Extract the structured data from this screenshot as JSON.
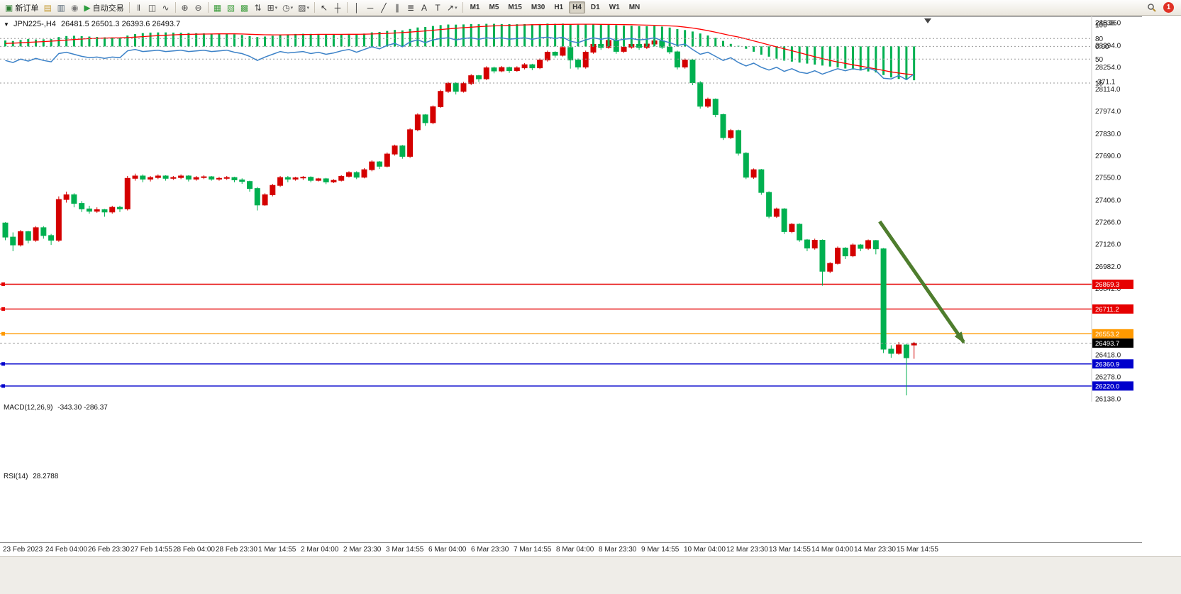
{
  "toolbar": {
    "items": [
      {
        "name": "new-order-button",
        "glyph": "▣",
        "color": "#2e7d32",
        "label": "新订单"
      },
      {
        "name": "charts-window-icon",
        "glyph": "▤",
        "color": "#c8a03c"
      },
      {
        "name": "print-icon",
        "glyph": "▥",
        "color": "#5a6b7a"
      },
      {
        "name": "support-icon",
        "glyph": "◉",
        "color": "#7a7a7a"
      },
      {
        "name": "autotrade-button",
        "glyph": "▶",
        "color": "#2e9e3f",
        "label": "自动交易"
      },
      {
        "kind": "sep"
      },
      {
        "name": "bar-chart-icon",
        "glyph": "‖",
        "color": "#4a4a4a"
      },
      {
        "name": "candlestick-chart-icon",
        "glyph": "◫",
        "color": "#4a4a4a"
      },
      {
        "name": "line-chart-icon",
        "glyph": "∿",
        "color": "#4a4a4a"
      },
      {
        "kind": "sep"
      },
      {
        "name": "zoom-in-icon",
        "glyph": "⊕",
        "color": "#4a4a4a"
      },
      {
        "name": "zoom-out-icon",
        "glyph": "⊖",
        "color": "#4a4a4a"
      },
      {
        "kind": "sep"
      },
      {
        "name": "tile-windows-icon",
        "glyph": "▦",
        "color": "#3f9e3f"
      },
      {
        "name": "cascade-windows-icon",
        "glyph": "▧",
        "color": "#3f9e3f"
      },
      {
        "name": "arrange-windows-icon",
        "glyph": "▩",
        "color": "#3f9e3f"
      },
      {
        "name": "sort-up-icon",
        "glyph": "⇅",
        "color": "#4a4a4a"
      },
      {
        "name": "indicators-icon",
        "glyph": "⊞",
        "color": "#4a4a4a",
        "dd": true
      },
      {
        "name": "period-clock-icon",
        "glyph": "◷",
        "color": "#4a4a4a",
        "dd": true
      },
      {
        "name": "templates-icon",
        "glyph": "▨",
        "color": "#4a4a4a",
        "dd": true
      },
      {
        "kind": "sep"
      },
      {
        "name": "cursor-icon",
        "glyph": "↖",
        "color": "#333333"
      },
      {
        "name": "crosshair-icon",
        "glyph": "┼",
        "color": "#333333"
      },
      {
        "kind": "sep"
      },
      {
        "name": "vertical-line-icon",
        "glyph": "│",
        "color": "#333333"
      },
      {
        "name": "horizontal-line-icon",
        "glyph": "─",
        "color": "#333333"
      },
      {
        "name": "trendline-icon",
        "glyph": "╱",
        "color": "#333333"
      },
      {
        "name": "channel-icon",
        "glyph": "∥",
        "color": "#333333"
      },
      {
        "name": "fibonacci-icon",
        "glyph": "≣",
        "color": "#333333"
      },
      {
        "name": "text-icon",
        "glyph": "A",
        "color": "#333333"
      },
      {
        "name": "text-label-icon",
        "glyph": "T",
        "color": "#333333"
      },
      {
        "name": "arrows-icon",
        "glyph": "↗",
        "color": "#333333",
        "dd": true
      },
      {
        "kind": "sep"
      }
    ],
    "timeframes": [
      "M1",
      "M5",
      "M15",
      "M30",
      "H1",
      "H4",
      "D1",
      "W1",
      "MN"
    ],
    "active_timeframe": "H4",
    "notification_badge": "1"
  },
  "chart": {
    "menu_glyph": "▼"
  },
  "chart_data": {
    "type": "candlestick",
    "symbol": "JPN225-",
    "period": "H4",
    "title": "JPN225-,H4",
    "ohlc_text": "26481.5 26501.3 26393.6 26493.7",
    "up_color": "#d40000",
    "down_color": "#00b050",
    "price_axis_labels": [
      "28538.0",
      "28394.0",
      "28254.0",
      "28114.0",
      "27974.0",
      "27830.0",
      "27690.0",
      "27550.0",
      "27406.0",
      "27266.0",
      "27126.0",
      "26982.0",
      "26842.0",
      "26418.0",
      "26278.0",
      "26138.0"
    ],
    "time_axis_labels": [
      "23 Feb 2023",
      "24 Feb 04:00",
      "26 Feb 23:30",
      "27 Feb 14:55",
      "28 Feb 04:00",
      "28 Feb 23:30",
      "1 Mar 14:55",
      "2 Mar 04:00",
      "2 Mar 23:30",
      "3 Mar 14:55",
      "6 Mar 04:00",
      "6 Mar 23:30",
      "7 Mar 14:55",
      "8 Mar 04:00",
      "8 Mar 23:30",
      "9 Mar 14:55",
      "10 Mar 04:00",
      "12 Mar 23:30",
      "13 Mar 14:55",
      "14 Mar 04:00",
      "14 Mar 23:30",
      "15 Mar 14:55"
    ],
    "hlines": [
      {
        "price": 26869.3,
        "label": "26869.3",
        "color": "#e60000"
      },
      {
        "price": 26711.2,
        "label": "26711.2",
        "color": "#e60000"
      },
      {
        "price": 26553.2,
        "label": "26553.2",
        "color": "#ff9900"
      },
      {
        "price": 26360.9,
        "label": "26360.9",
        "color": "#0000cc"
      },
      {
        "price": 26220.0,
        "label": "26220.0",
        "color": "#0000cc"
      }
    ],
    "current_price": {
      "value": 26493.7,
      "label": "26493.7",
      "color": "#000000"
    },
    "trend_arrow": {
      "from_index": 114.5,
      "from_price": 27270,
      "to_index": 125.5,
      "to_price": 26500,
      "color": "#4e7d2d"
    },
    "candles": [
      [
        27260,
        27265,
        27150,
        27170
      ],
      [
        27170,
        27200,
        27080,
        27120
      ],
      [
        27120,
        27215,
        27110,
        27205
      ],
      [
        27205,
        27210,
        27130,
        27150
      ],
      [
        27150,
        27240,
        27140,
        27230
      ],
      [
        27230,
        27240,
        27160,
        27180
      ],
      [
        27180,
        27190,
        27120,
        27150
      ],
      [
        27150,
        27430,
        27140,
        27410
      ],
      [
        27410,
        27460,
        27390,
        27440
      ],
      [
        27440,
        27450,
        27360,
        27385
      ],
      [
        27385,
        27400,
        27330,
        27350
      ],
      [
        27350,
        27370,
        27320,
        27335
      ],
      [
        27335,
        27360,
        27325,
        27345
      ],
      [
        27345,
        27350,
        27300,
        27330
      ],
      [
        27330,
        27370,
        27320,
        27360
      ],
      [
        27360,
        27370,
        27330,
        27350
      ],
      [
        27350,
        27560,
        27340,
        27545
      ],
      [
        27545,
        27575,
        27530,
        27560
      ],
      [
        27560,
        27570,
        27520,
        27540
      ],
      [
        27540,
        27560,
        27525,
        27550
      ],
      [
        27550,
        27570,
        27540,
        27560
      ],
      [
        27560,
        27565,
        27530,
        27545
      ],
      [
        27545,
        27560,
        27535,
        27550
      ],
      [
        27550,
        27570,
        27540,
        27560
      ],
      [
        27560,
        27565,
        27525,
        27540
      ],
      [
        27540,
        27560,
        27530,
        27550
      ],
      [
        27550,
        27565,
        27540,
        27555
      ],
      [
        27555,
        27560,
        27530,
        27540
      ],
      [
        27540,
        27555,
        27530,
        27545
      ],
      [
        27545,
        27560,
        27535,
        27550
      ],
      [
        27550,
        27555,
        27520,
        27535
      ],
      [
        27535,
        27545,
        27510,
        27525
      ],
      [
        27525,
        27530,
        27460,
        27480
      ],
      [
        27480,
        27490,
        27340,
        27375
      ],
      [
        27375,
        27450,
        27370,
        27440
      ],
      [
        27440,
        27510,
        27430,
        27500
      ],
      [
        27500,
        27560,
        27490,
        27550
      ],
      [
        27550,
        27560,
        27520,
        27540
      ],
      [
        27540,
        27555,
        27530,
        27548
      ],
      [
        27548,
        27560,
        27535,
        27552
      ],
      [
        27552,
        27558,
        27520,
        27532
      ],
      [
        27532,
        27548,
        27525,
        27542
      ],
      [
        27542,
        27548,
        27508,
        27522
      ],
      [
        27522,
        27540,
        27515,
        27532
      ],
      [
        27532,
        27565,
        27525,
        27558
      ],
      [
        27558,
        27590,
        27550,
        27582
      ],
      [
        27582,
        27590,
        27540,
        27552
      ],
      [
        27552,
        27610,
        27545,
        27600
      ],
      [
        27600,
        27660,
        27590,
        27650
      ],
      [
        27650,
        27655,
        27605,
        27622
      ],
      [
        27622,
        27710,
        27615,
        27700
      ],
      [
        27700,
        27760,
        27690,
        27752
      ],
      [
        27752,
        27758,
        27670,
        27685
      ],
      [
        27685,
        27865,
        27675,
        27855
      ],
      [
        27855,
        27960,
        27845,
        27950
      ],
      [
        27950,
        27955,
        27880,
        27900
      ],
      [
        27900,
        28010,
        27890,
        28002
      ],
      [
        28002,
        28110,
        27995,
        28100
      ],
      [
        28100,
        28160,
        28090,
        28152
      ],
      [
        28152,
        28158,
        28080,
        28100
      ],
      [
        28100,
        28160,
        28092,
        28150
      ],
      [
        28150,
        28210,
        28140,
        28200
      ],
      [
        28200,
        28205,
        28160,
        28180
      ],
      [
        28180,
        28260,
        28172,
        28250
      ],
      [
        28250,
        28258,
        28215,
        28230
      ],
      [
        28230,
        28262,
        28222,
        28252
      ],
      [
        28252,
        28258,
        28218,
        28232
      ],
      [
        28232,
        28260,
        28225,
        28250
      ],
      [
        28250,
        28280,
        28240,
        28270
      ],
      [
        28270,
        28276,
        28235,
        28250
      ],
      [
        28250,
        28310,
        28242,
        28300
      ],
      [
        28300,
        28360,
        28290,
        28350
      ],
      [
        28350,
        28356,
        28315,
        28330
      ],
      [
        28330,
        28390,
        28322,
        28380
      ],
      [
        28380,
        28430,
        28245,
        28300
      ],
      [
        28300,
        28310,
        28240,
        28255
      ],
      [
        28255,
        28360,
        28245,
        28350
      ],
      [
        28350,
        28410,
        28340,
        28400
      ],
      [
        28400,
        28406,
        28365,
        28380
      ],
      [
        28380,
        28460,
        28372,
        28425
      ],
      [
        28425,
        28430,
        28340,
        28355
      ],
      [
        28355,
        28390,
        28345,
        28382
      ],
      [
        28382,
        28408,
        28372,
        28400
      ],
      [
        28400,
        28405,
        28365,
        28380
      ],
      [
        28380,
        28410,
        28370,
        28402
      ],
      [
        28402,
        28430,
        28392,
        28422
      ],
      [
        28422,
        28426,
        28370,
        28382
      ],
      [
        28382,
        28388,
        28338,
        28352
      ],
      [
        28352,
        28360,
        28240,
        28255
      ],
      [
        28255,
        28310,
        28245,
        28300
      ],
      [
        28300,
        28305,
        28140,
        28155
      ],
      [
        28155,
        28165,
        27990,
        28005
      ],
      [
        28005,
        28060,
        27995,
        28050
      ],
      [
        28050,
        28055,
        27935,
        27952
      ],
      [
        27952,
        27958,
        27790,
        27805
      ],
      [
        27805,
        27860,
        27795,
        27850
      ],
      [
        27850,
        27856,
        27690,
        27705
      ],
      [
        27705,
        27712,
        27540,
        27552
      ],
      [
        27552,
        27608,
        27542,
        27600
      ],
      [
        27600,
        27605,
        27440,
        27455
      ],
      [
        27455,
        27462,
        27290,
        27302
      ],
      [
        27302,
        27358,
        27292,
        27350
      ],
      [
        27350,
        27355,
        27190,
        27205
      ],
      [
        27205,
        27260,
        27195,
        27252
      ],
      [
        27252,
        27258,
        27140,
        27152
      ],
      [
        27152,
        27158,
        27080,
        27100
      ],
      [
        27100,
        27160,
        27090,
        27150
      ],
      [
        27150,
        27155,
        26860,
        26952
      ],
      [
        26952,
        27010,
        26940,
        27002
      ],
      [
        27002,
        27110,
        26995,
        27100
      ],
      [
        27100,
        27106,
        27030,
        27050
      ],
      [
        27050,
        27130,
        27042,
        27120
      ],
      [
        27120,
        27126,
        27080,
        27098
      ],
      [
        27098,
        27155,
        27088,
        27148
      ],
      [
        27148,
        27152,
        27060,
        27095
      ],
      [
        27095,
        27100,
        26430,
        26455
      ],
      [
        26455,
        26480,
        26400,
        26428
      ],
      [
        26428,
        26500,
        26420,
        26482
      ],
      [
        26482,
        26488,
        26160,
        26400
      ],
      [
        26481.5,
        26501.3,
        26393.6,
        26493.7
      ]
    ],
    "macd": {
      "title": "MACD(12,26,9)",
      "value_text": "-343.30 -286.37",
      "axis_labels": [
        "240.36",
        "0.00",
        "-371.1"
      ],
      "hist_color": "#00b050",
      "signal_color": "#ff0000",
      "histogram": [
        60,
        55,
        65,
        75,
        70,
        72,
        74,
        95,
        105,
        108,
        104,
        100,
        96,
        92,
        90,
        88,
        110,
        125,
        135,
        140,
        142,
        142,
        140,
        138,
        136,
        134,
        132,
        130,
        128,
        126,
        122,
        116,
        104,
        95,
        100,
        108,
        116,
        122,
        126,
        128,
        127,
        125,
        123,
        121,
        122,
        126,
        124,
        130,
        142,
        147,
        157,
        167,
        162,
        177,
        192,
        197,
        207,
        216,
        222,
        221,
        223,
        227,
        225,
        229,
        229,
        227,
        226,
        225,
        226,
        225,
        227,
        231,
        229,
        231,
        226,
        221,
        223,
        225,
        219,
        221,
        216,
        211,
        209,
        206,
        205,
        207,
        201,
        191,
        176,
        166,
        151,
        131,
        111,
        86,
        56,
        26,
        6,
        -24,
        -54,
        -84,
        -104,
        -124,
        -144,
        -154,
        -164,
        -174,
        -184,
        -194,
        -204,
        -214,
        -224,
        -234,
        -244,
        -254,
        -264,
        -290,
        -315,
        -330,
        -340,
        -343.3
      ],
      "signal": [
        30,
        33,
        37,
        41,
        45,
        49,
        53,
        58,
        64,
        70,
        75,
        79,
        82,
        84,
        86,
        87,
        90,
        94,
        99,
        104,
        109,
        113,
        117,
        120,
        122,
        124,
        125,
        126,
        127,
        127,
        127,
        126,
        123,
        120,
        118,
        117,
        117,
        118,
        119,
        120,
        121,
        122,
        122,
        122,
        122,
        123,
        123,
        124,
        126,
        129,
        132,
        136,
        140,
        145,
        151,
        157,
        164,
        171,
        178,
        184,
        190,
        195,
        200,
        204,
        208,
        211,
        214,
        216,
        218,
        220,
        221,
        222,
        223,
        224,
        224,
        225,
        225,
        225,
        224,
        223,
        222,
        221,
        220,
        218,
        216,
        214,
        211,
        208,
        204,
        196,
        186,
        174,
        160,
        144,
        127,
        110,
        96,
        76,
        56,
        36,
        16,
        -4,
        -24,
        -44,
        -64,
        -84,
        -104,
        -124,
        -142,
        -158,
        -172,
        -186,
        -200,
        -214,
        -228,
        -244,
        -258,
        -270,
        -280,
        -286.37
      ]
    },
    "rsi": {
      "title": "RSI(14)",
      "value_text": "28.2788",
      "axis_labels": [
        "100",
        "80",
        "50",
        "15"
      ],
      "levels": [
        80,
        50,
        15
      ],
      "color": "#3c82c8",
      "values": [
        48,
        45,
        50,
        47,
        51,
        48,
        46,
        58,
        60,
        57,
        54,
        52,
        53,
        51,
        53,
        52,
        62,
        64,
        61,
        62,
        63,
        61,
        62,
        63,
        61,
        62,
        63,
        61,
        62,
        63,
        60,
        58,
        54,
        48,
        53,
        57,
        61,
        59,
        60,
        61,
        58,
        60,
        57,
        59,
        62,
        64,
        60,
        64,
        68,
        65,
        70,
        73,
        68,
        75,
        78,
        74,
        78,
        80,
        81,
        78,
        80,
        81,
        79,
        81,
        80,
        81,
        79,
        80,
        81,
        79,
        81,
        82,
        80,
        82,
        76,
        74,
        78,
        81,
        79,
        81,
        77,
        79,
        80,
        78,
        79,
        81,
        77,
        74,
        70,
        72,
        64,
        57,
        60,
        54,
        48,
        52,
        45,
        40,
        44,
        38,
        34,
        38,
        32,
        36,
        31,
        29,
        33,
        28,
        32,
        36,
        33,
        36,
        34,
        37,
        33,
        22,
        21,
        26,
        20,
        28.2788
      ]
    }
  }
}
